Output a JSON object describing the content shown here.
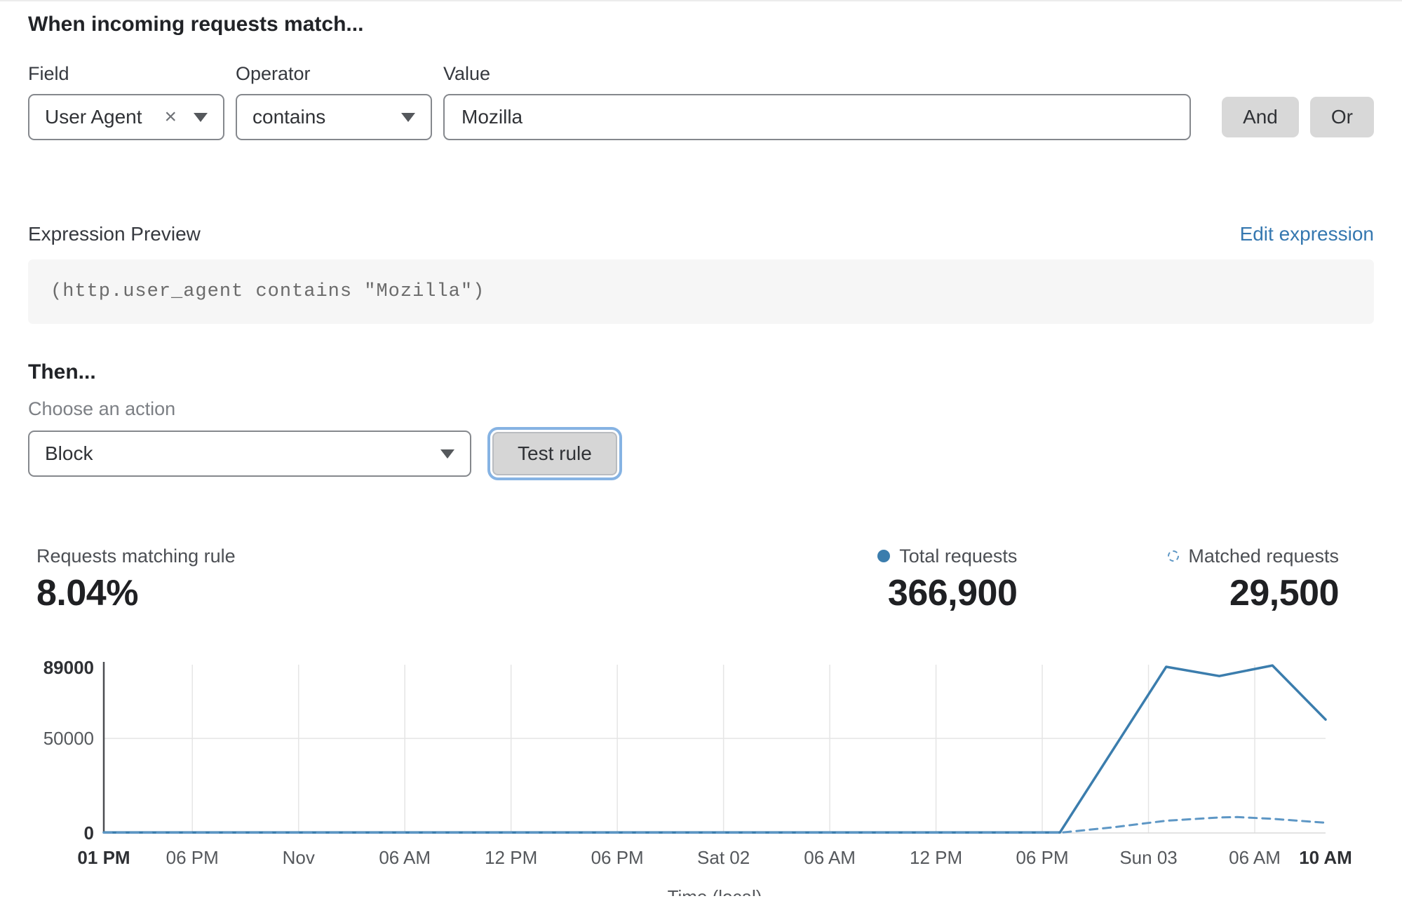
{
  "rule_builder": {
    "heading": "When incoming requests match...",
    "field": {
      "label": "Field",
      "value": "User Agent"
    },
    "operator": {
      "label": "Operator",
      "value": "contains"
    },
    "value": {
      "label": "Value",
      "value": "Mozilla"
    },
    "and_label": "And",
    "or_label": "Or"
  },
  "expression": {
    "label": "Expression Preview",
    "edit_link": "Edit expression",
    "code": "(http.user_agent contains \"Mozilla\")"
  },
  "action": {
    "heading": "Then...",
    "label": "Choose an action",
    "value": "Block",
    "test_button": "Test rule"
  },
  "stats": {
    "matching": {
      "label": "Requests matching rule",
      "value": "8.04%"
    },
    "total": {
      "label": "Total requests",
      "value": "366,900"
    },
    "matched": {
      "label": "Matched requests",
      "value": "29,500"
    }
  },
  "icons": {
    "clear_field": "×",
    "dropdown": "chevron-down",
    "total_legend": "solid-dot",
    "matched_legend": "dashed-circle"
  },
  "colors": {
    "line_blue": "#3b7dad",
    "dashed_blue": "#5e97c5",
    "link_blue": "#3678b0",
    "button_gray": "#d8d8d8",
    "focus_ring": "#86b3e3",
    "code_bg": "#f6f6f6"
  },
  "chart_data": {
    "type": "line",
    "title": "",
    "xlabel": "Time (local)",
    "ylabel": "",
    "ylim": [
      0,
      89000
    ],
    "x_range": [
      0,
      69
    ],
    "grid": true,
    "legend_position": "top-right",
    "y_ticks": [
      {
        "v": 0,
        "label": "0",
        "bold": true
      },
      {
        "v": 50000,
        "label": "50000",
        "bold": false
      },
      {
        "v": 89000,
        "label": "89000",
        "bold": true
      }
    ],
    "x_ticks": [
      {
        "h": 0,
        "label": "01 PM",
        "bold": true
      },
      {
        "h": 5,
        "label": "06 PM",
        "bold": false
      },
      {
        "h": 11,
        "label": "Nov",
        "bold": false
      },
      {
        "h": 17,
        "label": "06 AM",
        "bold": false
      },
      {
        "h": 23,
        "label": "12 PM",
        "bold": false
      },
      {
        "h": 29,
        "label": "06 PM",
        "bold": false
      },
      {
        "h": 35,
        "label": "Sat 02",
        "bold": false
      },
      {
        "h": 41,
        "label": "06 AM",
        "bold": false
      },
      {
        "h": 47,
        "label": "12 PM",
        "bold": false
      },
      {
        "h": 53,
        "label": "06 PM",
        "bold": false
      },
      {
        "h": 59,
        "label": "Sun 03",
        "bold": false
      },
      {
        "h": 65,
        "label": "06 AM",
        "bold": false
      },
      {
        "h": 69,
        "label": "10 AM",
        "bold": true
      }
    ],
    "series": [
      {
        "name": "Total requests",
        "style": "solid",
        "color": "#3b7dad",
        "points": [
          [
            0,
            300
          ],
          [
            6,
            300
          ],
          [
            12,
            300
          ],
          [
            18,
            300
          ],
          [
            24,
            300
          ],
          [
            30,
            300
          ],
          [
            36,
            300
          ],
          [
            42,
            300
          ],
          [
            48,
            300
          ],
          [
            54,
            300
          ],
          [
            60,
            87900
          ],
          [
            63,
            83000
          ],
          [
            66,
            88600
          ],
          [
            69,
            60000
          ]
        ]
      },
      {
        "name": "Matched requests",
        "style": "dashed",
        "color": "#5e97c5",
        "points": [
          [
            0,
            150
          ],
          [
            6,
            150
          ],
          [
            12,
            150
          ],
          [
            18,
            150
          ],
          [
            24,
            150
          ],
          [
            30,
            150
          ],
          [
            36,
            150
          ],
          [
            42,
            150
          ],
          [
            48,
            150
          ],
          [
            54,
            150
          ],
          [
            57,
            3000
          ],
          [
            60,
            6500
          ],
          [
            63,
            8200
          ],
          [
            64,
            8400
          ],
          [
            66,
            7500
          ],
          [
            69,
            5400
          ]
        ]
      }
    ]
  }
}
